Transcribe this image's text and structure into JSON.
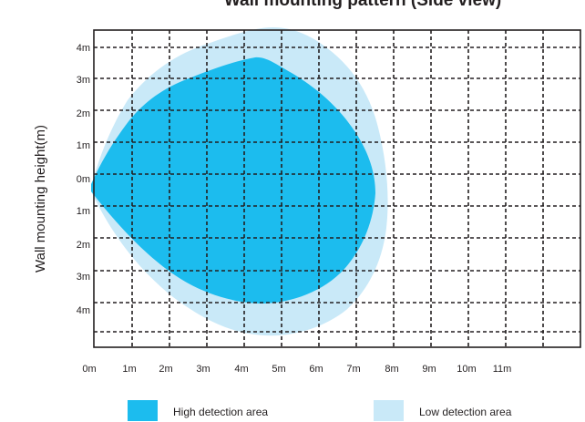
{
  "diagram": {
    "title": "Wall mounting pattern (Side view)",
    "y_axis_label": "Wall mounting height(m)",
    "x_ticks": [
      "0m",
      "1m",
      "2m",
      "3m",
      "4m",
      "5m",
      "6m",
      "7m",
      "8m",
      "9m",
      "10m",
      "11m"
    ],
    "y_ticks_upper": [
      "4m",
      "3m",
      "2m",
      "1m",
      "0m"
    ],
    "y_ticks_lower": [
      "1m",
      "2m",
      "3m",
      "4m"
    ],
    "legend": [
      {
        "label": "High detection area",
        "color": "#1cbcee"
      },
      {
        "label": "Low detection area",
        "color": "#c9e9f8"
      }
    ]
  },
  "colors": {
    "high_detection": "#1cbcee",
    "low_detection": "#c9e9f8",
    "grid": "#231f20",
    "text": "#231f20"
  }
}
